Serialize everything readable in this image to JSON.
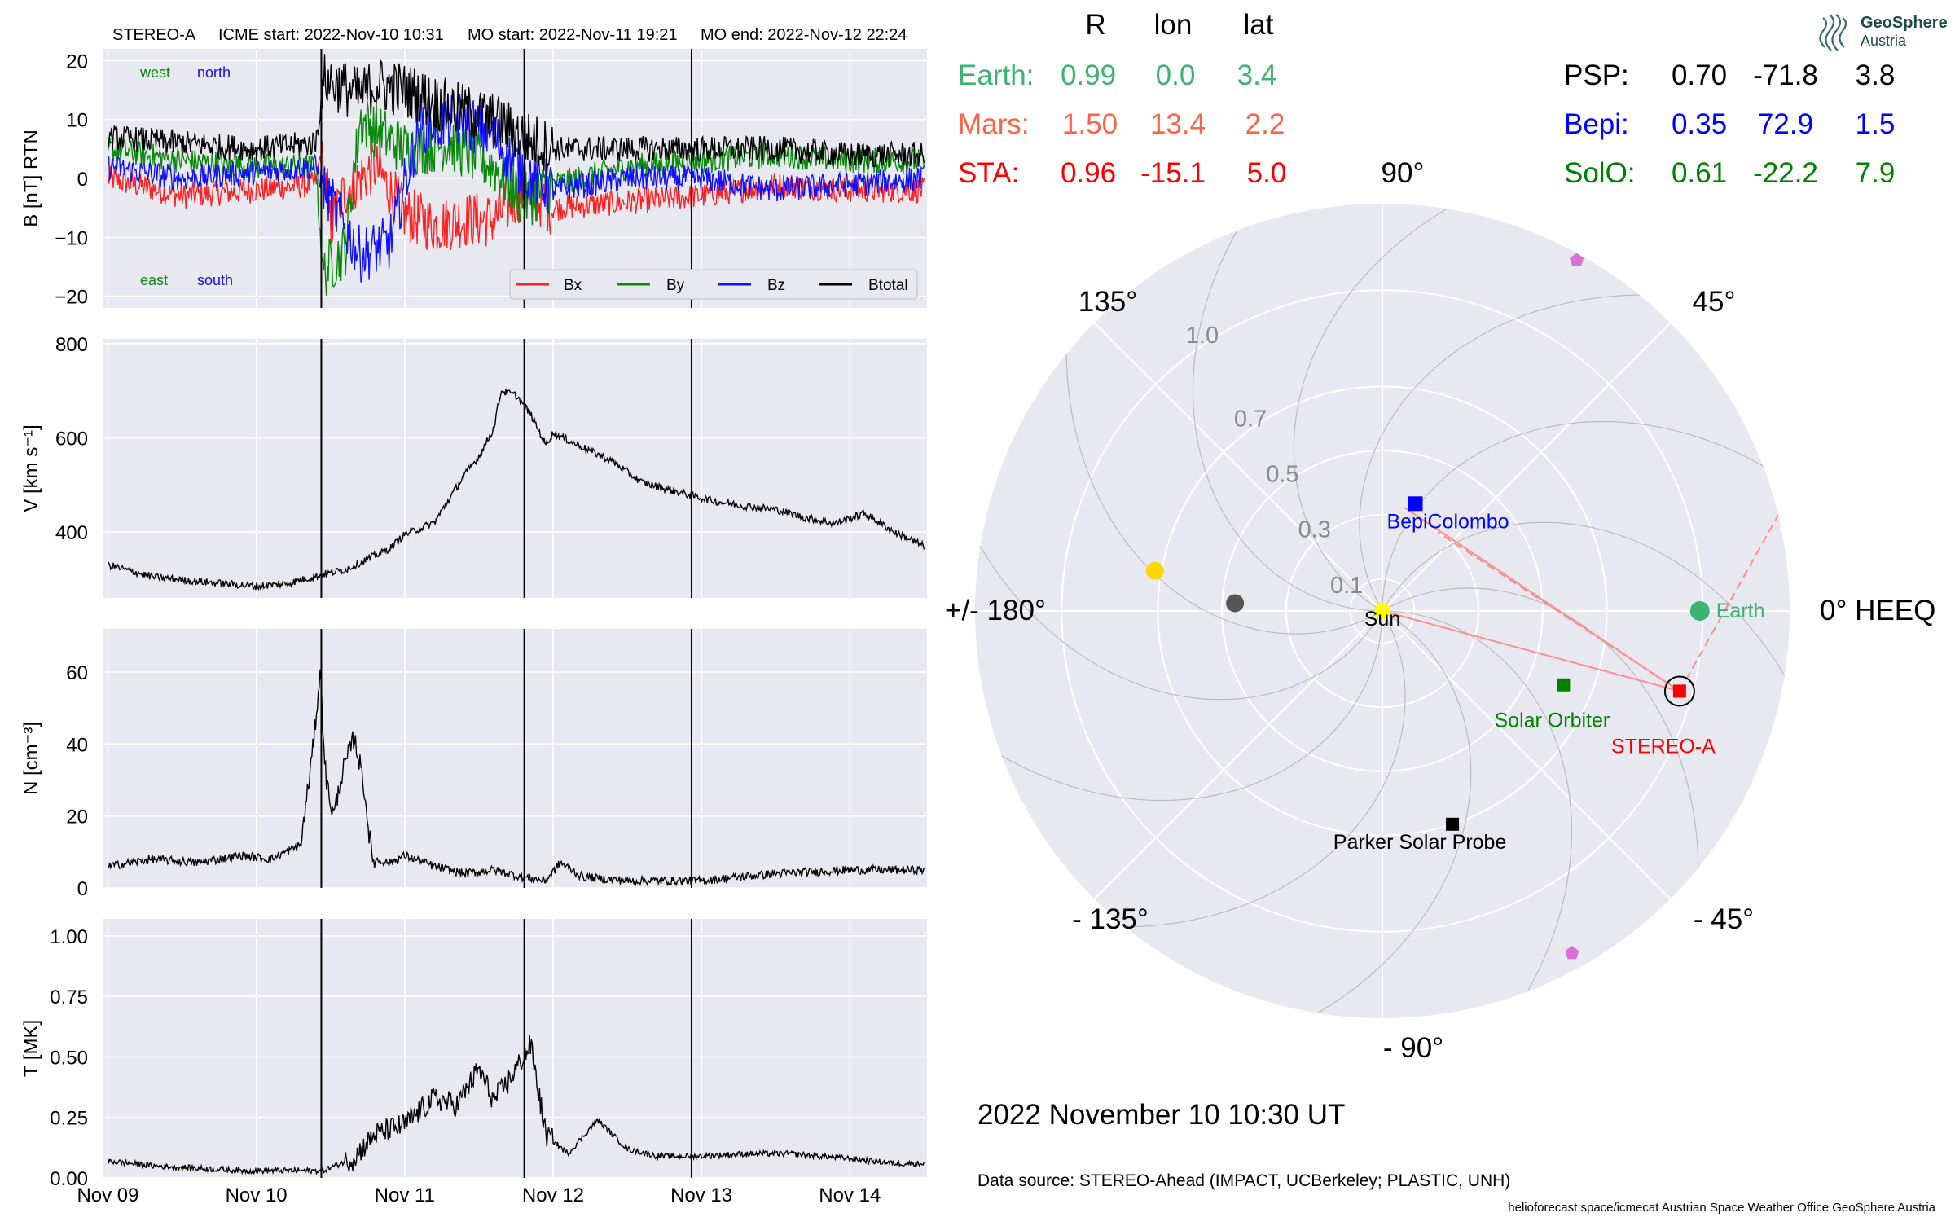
{
  "header": {
    "spacecraft": "STEREO-A",
    "icme_start": "ICME start: 2022-Nov-10 10:31",
    "mo_start": "MO start: 2022-Nov-11 19:21",
    "mo_end": "MO end: 2022-Nov-12 22:24"
  },
  "logo": {
    "name": "GeoSphere",
    "sub": "Austria"
  },
  "colors": {
    "bx": "#ff2020",
    "by": "#0a8a0a",
    "bz": "#1010ff",
    "btotal": "#000000",
    "panel_bg": "#e8e8f0",
    "grid": "#ffffff",
    "earth": "#3cb371",
    "mars": "#ff6347",
    "sta": "#ff0000",
    "psp": "#000000",
    "bepi": "#0000ff",
    "solo": "#008000",
    "sun": "#ffff00",
    "venus": "#ffd700",
    "mercury": "#555555",
    "planet9": "#da70d6",
    "fieldline": "#ff8c8c"
  },
  "timeseries": {
    "x_ticks": [
      "Nov 09",
      "Nov 10",
      "Nov 11",
      "Nov 12",
      "Nov 13",
      "Nov 14"
    ],
    "event_lines": [
      "2022-11-10 10:31",
      "2022-11-11 19:21",
      "2022-11-12 22:24"
    ],
    "labels": {
      "west": "west",
      "north": "north",
      "east": "east",
      "south": "south"
    },
    "legend": [
      "Bx",
      "By",
      "Bz",
      "Btotal"
    ]
  },
  "chart_data": [
    {
      "type": "line",
      "ylabel": "B [nT] RTN",
      "ylim": [
        -22,
        22
      ],
      "yticks": [
        "20",
        "10",
        "0",
        "−10",
        "−20"
      ],
      "series": [
        {
          "name": "Bx",
          "points": [
            [
              0,
              0
            ],
            [
              0.5,
              -3
            ],
            [
              1,
              -2
            ],
            [
              1.4,
              -1
            ],
            [
              1.44,
              5
            ],
            [
              1.5,
              -8
            ],
            [
              1.6,
              -2
            ],
            [
              1.8,
              2
            ],
            [
              2.0,
              -6
            ],
            [
              2.2,
              -8
            ],
            [
              2.4,
              -7
            ],
            [
              2.6,
              -7
            ],
            [
              2.8,
              -2
            ],
            [
              3.0,
              -5
            ],
            [
              3.5,
              -4
            ],
            [
              4.0,
              -3
            ],
            [
              4.5,
              -1
            ],
            [
              5,
              -2
            ],
            [
              5.5,
              -2
            ]
          ]
        },
        {
          "name": "By",
          "points": [
            [
              0,
              5
            ],
            [
              0.5,
              3
            ],
            [
              1,
              2
            ],
            [
              1.4,
              2
            ],
            [
              1.45,
              -16
            ],
            [
              1.6,
              -12
            ],
            [
              1.7,
              10
            ],
            [
              2.0,
              5
            ],
            [
              2.3,
              6
            ],
            [
              2.6,
              2
            ],
            [
              2.8,
              -4
            ],
            [
              3.0,
              -1
            ],
            [
              3.5,
              2
            ],
            [
              4.0,
              3
            ],
            [
              4.5,
              4
            ],
            [
              5,
              3
            ],
            [
              5.5,
              3
            ]
          ]
        },
        {
          "name": "Bz",
          "points": [
            [
              0,
              2
            ],
            [
              0.5,
              0
            ],
            [
              1,
              1
            ],
            [
              1.4,
              2
            ],
            [
              1.5,
              -4
            ],
            [
              1.7,
              -13
            ],
            [
              1.9,
              -11
            ],
            [
              2.1,
              9
            ],
            [
              2.4,
              10
            ],
            [
              2.6,
              7
            ],
            [
              2.8,
              1
            ],
            [
              3.0,
              -2
            ],
            [
              3.5,
              0
            ],
            [
              4.0,
              0
            ],
            [
              4.5,
              -2
            ],
            [
              5,
              -1
            ],
            [
              5.5,
              0
            ]
          ]
        },
        {
          "name": "Btotal",
          "points": [
            [
              0,
              7
            ],
            [
              0.5,
              6
            ],
            [
              1,
              5
            ],
            [
              1.4,
              6
            ],
            [
              1.46,
              17
            ],
            [
              1.7,
              14
            ],
            [
              1.8,
              16
            ],
            [
              2.0,
              15
            ],
            [
              2.3,
              12
            ],
            [
              2.6,
              10
            ],
            [
              2.8,
              7
            ],
            [
              3.0,
              5
            ],
            [
              3.5,
              5
            ],
            [
              4.0,
              5
            ],
            [
              4.5,
              5
            ],
            [
              5,
              4
            ],
            [
              5.5,
              4
            ]
          ]
        }
      ]
    },
    {
      "type": "line",
      "ylabel": "V [km s⁻¹]",
      "ylim": [
        260,
        810
      ],
      "yticks": [
        "800",
        "600",
        "400"
      ],
      "series": [
        {
          "name": "V",
          "points": [
            [
              0,
              330
            ],
            [
              0.3,
              305
            ],
            [
              0.6,
              295
            ],
            [
              1.0,
              285
            ],
            [
              1.2,
              290
            ],
            [
              1.45,
              310
            ],
            [
              1.6,
              320
            ],
            [
              1.9,
              365
            ],
            [
              2.0,
              395
            ],
            [
              2.2,
              420
            ],
            [
              2.4,
              520
            ],
            [
              2.5,
              560
            ],
            [
              2.6,
              620
            ],
            [
              2.65,
              700
            ],
            [
              2.75,
              690
            ],
            [
              2.85,
              650
            ],
            [
              2.95,
              585
            ],
            [
              3.0,
              610
            ],
            [
              3.2,
              580
            ],
            [
              3.4,
              550
            ],
            [
              3.6,
              505
            ],
            [
              3.9,
              480
            ],
            [
              4.1,
              465
            ],
            [
              4.3,
              455
            ],
            [
              4.5,
              448
            ],
            [
              4.7,
              430
            ],
            [
              4.9,
              418
            ],
            [
              5.1,
              440
            ],
            [
              5.3,
              400
            ],
            [
              5.5,
              370
            ]
          ]
        }
      ]
    },
    {
      "type": "line",
      "ylabel": "N [cm⁻³]",
      "ylim": [
        0,
        72
      ],
      "yticks": [
        "60",
        "40",
        "20",
        "0"
      ],
      "series": [
        {
          "name": "N",
          "points": [
            [
              0,
              6
            ],
            [
              0.3,
              8
            ],
            [
              0.6,
              7
            ],
            [
              0.9,
              9
            ],
            [
              1.1,
              8
            ],
            [
              1.3,
              12
            ],
            [
              1.38,
              38
            ],
            [
              1.43,
              60
            ],
            [
              1.47,
              30
            ],
            [
              1.52,
              20
            ],
            [
              1.58,
              32
            ],
            [
              1.66,
              42
            ],
            [
              1.72,
              30
            ],
            [
              1.78,
              8
            ],
            [
              1.9,
              7
            ],
            [
              2.0,
              9
            ],
            [
              2.2,
              6
            ],
            [
              2.4,
              4
            ],
            [
              2.6,
              5
            ],
            [
              2.8,
              3
            ],
            [
              2.95,
              2
            ],
            [
              3.05,
              7
            ],
            [
              3.2,
              3
            ],
            [
              3.5,
              2
            ],
            [
              4.0,
              2
            ],
            [
              4.5,
              4
            ],
            [
              5.0,
              5
            ],
            [
              5.5,
              5
            ]
          ]
        }
      ]
    },
    {
      "type": "line",
      "ylabel": "T [MK]",
      "ylim": [
        0,
        1.07
      ],
      "yticks": [
        "1.00",
        "0.75",
        "0.50",
        "0.25",
        "0.00"
      ],
      "series": [
        {
          "name": "T",
          "points": [
            [
              0,
              0.07
            ],
            [
              0.3,
              0.05
            ],
            [
              0.6,
              0.04
            ],
            [
              0.9,
              0.03
            ],
            [
              1.2,
              0.03
            ],
            [
              1.45,
              0.03
            ],
            [
              1.65,
              0.08
            ],
            [
              1.8,
              0.18
            ],
            [
              2.0,
              0.22
            ],
            [
              2.2,
              0.33
            ],
            [
              2.35,
              0.3
            ],
            [
              2.5,
              0.45
            ],
            [
              2.6,
              0.32
            ],
            [
              2.7,
              0.4
            ],
            [
              2.85,
              0.55
            ],
            [
              2.95,
              0.18
            ],
            [
              3.1,
              0.1
            ],
            [
              3.3,
              0.24
            ],
            [
              3.5,
              0.12
            ],
            [
              3.7,
              0.09
            ],
            [
              4.0,
              0.09
            ],
            [
              4.3,
              0.1
            ],
            [
              4.6,
              0.1
            ],
            [
              5.0,
              0.08
            ],
            [
              5.3,
              0.06
            ],
            [
              5.5,
              0.06
            ]
          ]
        }
      ]
    },
    {
      "type": "scatter",
      "title": "",
      "angular_labels": [
        "90°",
        "45°",
        "0° HEEQ",
        "- 45°",
        "- 90°",
        "- 135°",
        "+/- 180°",
        "135°"
      ],
      "radial_ticks": [
        "1.0",
        "0.7",
        "0.5",
        "0.3",
        "0.1"
      ],
      "radial_values": [
        1.0,
        0.7,
        0.5,
        0.3,
        0.1
      ],
      "rmax": 1.27,
      "objects": [
        {
          "name": "Sun",
          "r": 0.0,
          "lon": 0.0
        },
        {
          "name": "Earth",
          "r": 0.99,
          "lon": 0.0
        },
        {
          "name": "STEREO-A",
          "r": 0.96,
          "lon": -15.1
        },
        {
          "name": "Solar Orbiter",
          "r": 0.61,
          "lon": -22.2
        },
        {
          "name": "Parker Solar Probe",
          "r": 0.7,
          "lon": -71.8
        },
        {
          "name": "BepiColombo",
          "r": 0.35,
          "lon": 72.9
        }
      ],
      "unlabeled_planets": [
        {
          "role": "venus",
          "r": 0.72,
          "lon": 170
        },
        {
          "role": "mercury",
          "r": 0.46,
          "lon": 177
        },
        {
          "role": "planet9",
          "r": 1.25,
          "lon": 61
        },
        {
          "role": "planet9",
          "r": 1.22,
          "lon": -61
        }
      ]
    }
  ],
  "table": {
    "headers": [
      "R",
      "lon",
      "lat"
    ],
    "left_rows": [
      {
        "label": "Earth:",
        "r": "0.99",
        "lon": "0.0",
        "lat": "3.4"
      },
      {
        "label": "Mars:",
        "r": "1.50",
        "lon": "13.4",
        "lat": "2.2"
      },
      {
        "label": "STA:",
        "r": "0.96",
        "lon": "-15.1",
        "lat": "5.0"
      }
    ],
    "right_rows": [
      {
        "label": "PSP:",
        "r": "0.70",
        "lon": "-71.8",
        "lat": "3.8"
      },
      {
        "label": "Bepi:",
        "r": "0.35",
        "lon": "72.9",
        "lat": "1.5"
      },
      {
        "label": "SolO:",
        "r": "0.61",
        "lon": "-22.2",
        "lat": "7.9"
      }
    ]
  },
  "footer": {
    "date": "2022 November 10  10:30 UT",
    "source": "Data source: STEREO-Ahead (IMPACT, UCBerkeley; PLASTIC, UNH)",
    "credits": "helioforecast.space/icmecat   Austrian Space Weather Office   GeoSphere Austria"
  }
}
